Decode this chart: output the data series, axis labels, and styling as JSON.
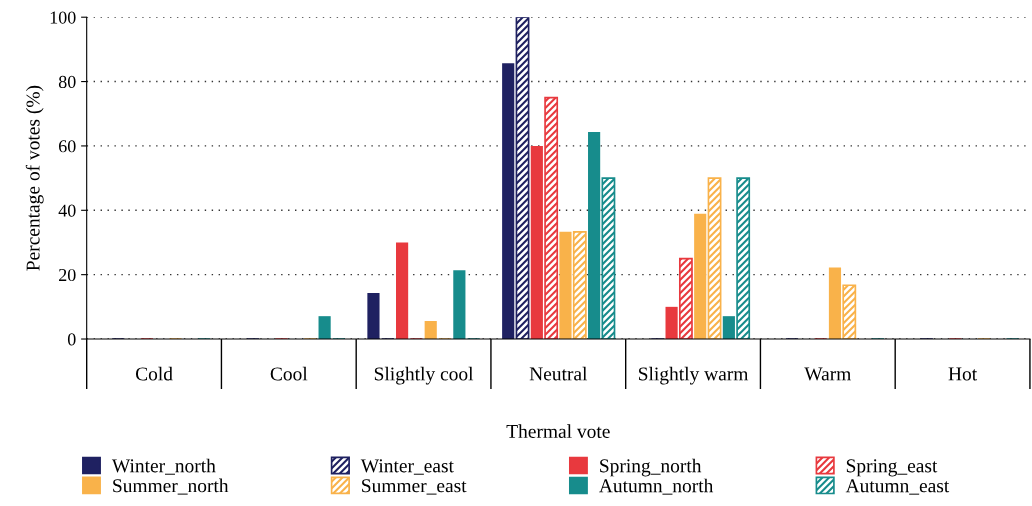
{
  "chart_data": {
    "type": "bar",
    "xlabel": "Thermal vote",
    "ylabel": "Percentage of votes (%)",
    "categories": [
      "Cold",
      "Cool",
      "Slightly cool",
      "Neutral",
      "Slightly warm",
      "Warm",
      "Hot"
    ],
    "series": [
      {
        "name": "Winter_north",
        "color": "#1f2161",
        "values": [
          0,
          0,
          14.3,
          85.7,
          0,
          0,
          0
        ]
      },
      {
        "name": "Winter_east",
        "color": "#1f2161",
        "values": [
          0,
          0,
          0,
          100,
          0,
          0,
          0
        ]
      },
      {
        "name": "Spring_north",
        "color": "#e8393e",
        "values": [
          0,
          0,
          30,
          60,
          10,
          0,
          0
        ]
      },
      {
        "name": "Spring_east",
        "color": "#e8393e",
        "values": [
          0,
          0,
          0,
          75,
          25,
          0,
          0
        ]
      },
      {
        "name": "Summer_north",
        "color": "#f9b24a",
        "values": [
          0,
          0,
          5.6,
          33.3,
          38.9,
          22.2,
          0
        ]
      },
      {
        "name": "Summer_east",
        "color": "#f9b24a",
        "values": [
          0,
          0,
          0,
          33.3,
          50,
          16.7,
          0
        ]
      },
      {
        "name": "Autumn_north",
        "color": "#178c8c",
        "values": [
          0,
          7.1,
          21.4,
          64.3,
          7.1,
          0,
          0
        ]
      },
      {
        "name": "Autumn_east",
        "color": "#178c8c",
        "values": [
          0,
          0,
          0,
          50,
          50,
          0,
          0
        ]
      }
    ],
    "ylim": [
      0,
      100
    ],
    "yticks": [
      0,
      20,
      40,
      60,
      80,
      100
    ],
    "grid": "y",
    "legend": "bottom"
  }
}
